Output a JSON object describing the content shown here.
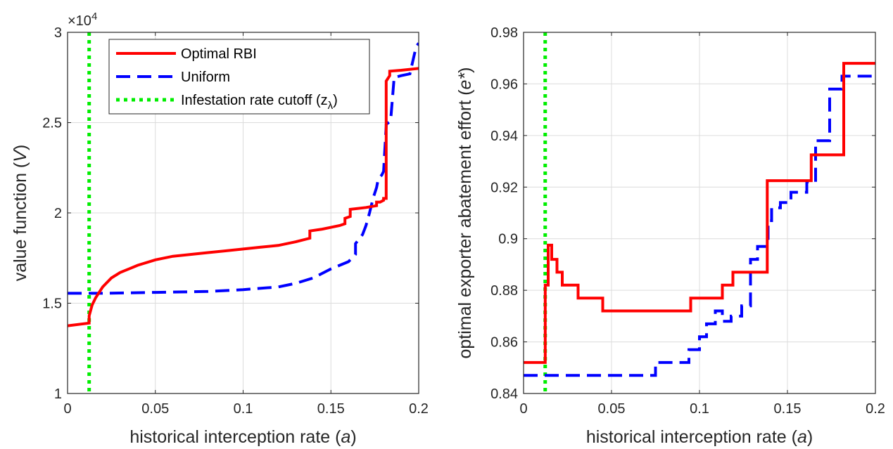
{
  "chart_data": [
    {
      "type": "line",
      "title": "",
      "xlabel": "historical interception rate (a)",
      "ylabel": "value function (V)",
      "xlabel_parts": [
        "historical interception rate (",
        "a",
        ")"
      ],
      "ylabel_parts": [
        "value function (",
        "V",
        ")"
      ],
      "multiplier": "×10",
      "multiplier_exp": "4",
      "xlim": [
        0,
        0.2
      ],
      "ylim": [
        1,
        3
      ],
      "xticks": [
        0,
        0.05,
        0.1,
        0.15,
        0.2
      ],
      "xtick_labels": [
        "0",
        "0.05",
        "0.1",
        "0.15",
        "0.2"
      ],
      "yticks": [
        1,
        1.5,
        2,
        2.5,
        3
      ],
      "ytick_labels": [
        "1",
        "1.5",
        "2",
        "2.5",
        "3"
      ],
      "grid": true,
      "legend_position": "top",
      "cutoff_x": 0.0123,
      "series": [
        {
          "name": "Optimal RBI",
          "color": "#ff0000",
          "style": "solid",
          "x": [
            0,
            0.0123,
            0.0123,
            0.014,
            0.016,
            0.018,
            0.02,
            0.025,
            0.03,
            0.035,
            0.04,
            0.05,
            0.06,
            0.07,
            0.08,
            0.09,
            0.1,
            0.11,
            0.12,
            0.13,
            0.138,
            0.138,
            0.145,
            0.15,
            0.155,
            0.158,
            0.158,
            0.161,
            0.161,
            0.17,
            0.176,
            0.176,
            0.178,
            0.18,
            0.18,
            0.1815,
            0.1815,
            0.1835,
            0.1835,
            0.19,
            0.2
          ],
          "y": [
            1.375,
            1.39,
            1.43,
            1.49,
            1.53,
            1.56,
            1.59,
            1.64,
            1.67,
            1.69,
            1.71,
            1.74,
            1.76,
            1.77,
            1.78,
            1.79,
            1.8,
            1.81,
            1.82,
            1.84,
            1.86,
            1.9,
            1.91,
            1.92,
            1.93,
            1.94,
            1.97,
            1.98,
            2.02,
            2.03,
            2.04,
            2.06,
            2.06,
            2.07,
            2.08,
            2.08,
            2.73,
            2.76,
            2.785,
            2.79,
            2.8
          ]
        },
        {
          "name": "Uniform",
          "color": "#0000ff",
          "style": "dashed",
          "x": [
            0,
            0.02,
            0.05,
            0.08,
            0.1,
            0.12,
            0.13,
            0.14,
            0.15,
            0.16,
            0.164,
            0.164,
            0.168,
            0.17,
            0.172,
            0.174,
            0.176,
            0.177,
            0.179,
            0.18,
            0.181,
            0.1815,
            0.1815,
            0.184,
            0.186,
            0.19,
            0.195,
            0.1985,
            0.2
          ],
          "y": [
            1.555,
            1.555,
            1.56,
            1.565,
            1.575,
            1.59,
            1.61,
            1.64,
            1.69,
            1.73,
            1.77,
            1.83,
            1.88,
            1.93,
            2.0,
            2.08,
            2.14,
            2.19,
            2.21,
            2.23,
            2.4,
            2.48,
            2.49,
            2.51,
            2.75,
            2.76,
            2.77,
            2.92,
            2.94
          ]
        }
      ],
      "cutoff_line": {
        "name": "Infestation rate cutoff (z",
        "subscript": "λ",
        "suffix": ")",
        "color": "#00ee00",
        "style": "dotted"
      }
    },
    {
      "type": "line",
      "title": "",
      "xlabel": "historical interception rate (a)",
      "ylabel": "optimal exporter abatement effort (e*)",
      "xlabel_parts": [
        "historical interception rate (",
        "a",
        ")"
      ],
      "ylabel_parts": [
        "optimal exporter abatement effort (",
        "e*",
        ")"
      ],
      "xlim": [
        0,
        0.2
      ],
      "ylim": [
        0.84,
        0.98
      ],
      "xticks": [
        0,
        0.05,
        0.1,
        0.15,
        0.2
      ],
      "xtick_labels": [
        "0",
        "0.05",
        "0.1",
        "0.15",
        "0.2"
      ],
      "yticks": [
        0.84,
        0.86,
        0.88,
        0.9,
        0.92,
        0.94,
        0.96,
        0.98
      ],
      "ytick_labels": [
        "0.84",
        "0.86",
        "0.88",
        "0.9",
        "0.92",
        "0.94",
        "0.96",
        "0.98"
      ],
      "grid": true,
      "cutoff_x": 0.0123,
      "series": [
        {
          "name": "Optimal RBI",
          "color": "#ff0000",
          "style": "solid",
          "x": [
            0,
            0.0123,
            0.0123,
            0.014,
            0.014,
            0.016,
            0.016,
            0.019,
            0.019,
            0.022,
            0.022,
            0.025,
            0.025,
            0.031,
            0.031,
            0.045,
            0.045,
            0.095,
            0.095,
            0.113,
            0.113,
            0.119,
            0.119,
            0.1385,
            0.1385,
            0.1635,
            0.1635,
            0.182,
            0.182,
            0.2
          ],
          "y": [
            0.852,
            0.852,
            0.882,
            0.882,
            0.8975,
            0.8975,
            0.892,
            0.892,
            0.887,
            0.887,
            0.882,
            0.882,
            0.882,
            0.882,
            0.877,
            0.877,
            0.872,
            0.872,
            0.877,
            0.877,
            0.882,
            0.882,
            0.887,
            0.887,
            0.9225,
            0.9225,
            0.9325,
            0.9325,
            0.968,
            0.968
          ]
        },
        {
          "name": "Uniform",
          "color": "#0000ff",
          "style": "dashed",
          "x": [
            0,
            0.075,
            0.075,
            0.094,
            0.094,
            0.1,
            0.1,
            0.104,
            0.104,
            0.109,
            0.109,
            0.113,
            0.113,
            0.118,
            0.118,
            0.124,
            0.124,
            0.129,
            0.129,
            0.133,
            0.133,
            0.139,
            0.139,
            0.141,
            0.141,
            0.146,
            0.146,
            0.152,
            0.152,
            0.161,
            0.161,
            0.166,
            0.166,
            0.174,
            0.174,
            0.181,
            0.181,
            0.2
          ],
          "y": [
            0.847,
            0.847,
            0.852,
            0.852,
            0.857,
            0.857,
            0.862,
            0.862,
            0.867,
            0.867,
            0.872,
            0.872,
            0.868,
            0.868,
            0.87,
            0.87,
            0.874,
            0.874,
            0.892,
            0.892,
            0.897,
            0.897,
            0.907,
            0.907,
            0.912,
            0.912,
            0.914,
            0.914,
            0.918,
            0.918,
            0.922,
            0.922,
            0.938,
            0.938,
            0.958,
            0.958,
            0.963,
            0.963
          ]
        }
      ]
    }
  ]
}
